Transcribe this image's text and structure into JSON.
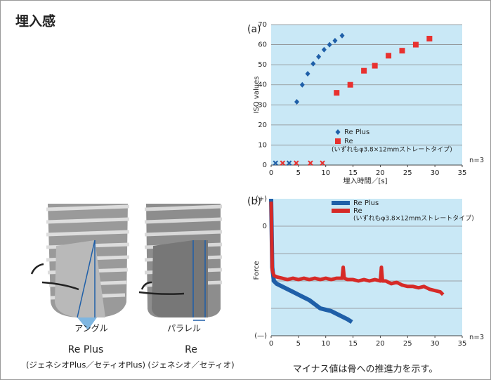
{
  "title": "埋入感",
  "left": {
    "angle_label": "アングル",
    "parallel_label": "パラレル",
    "replus_name": "Re Plus",
    "replus_sub": "(ジェネシオPlus／セティオPlus)",
    "re_name": "Re",
    "re_sub": "(ジェネシオ／セティオ)"
  },
  "caption": "マイナス値は骨への推進力を示す。",
  "chart_data": [
    {
      "type": "scatter",
      "label": "(a)",
      "y_label": "ISQ values",
      "x_label": "埋入時間／[s]",
      "note": "n=3",
      "legend_note": "(いずれもφ3.8×12mmストレートタイプ)",
      "background": "#c9e8f6",
      "grid": true,
      "xlim": [
        0,
        35
      ],
      "xticks": [
        0,
        5,
        10,
        15,
        20,
        25,
        30,
        35
      ],
      "ylim": [
        0,
        70
      ],
      "yticks": [
        0,
        10,
        20,
        30,
        40,
        50,
        60,
        70
      ],
      "series": [
        {
          "name": "Re Plus",
          "color": "#1f5fa8",
          "marker": "diamond",
          "x": [
            4.7,
            5.7,
            6.7,
            7.7,
            8.7,
            9.7,
            10.7,
            11.7,
            13
          ],
          "values": [
            31.5,
            40,
            45.5,
            50.5,
            54,
            57.5,
            60,
            62,
            64.5
          ]
        },
        {
          "name": "Re",
          "color": "#e8312f",
          "marker": "square",
          "x": [
            12,
            14.5,
            17,
            19,
            21.5,
            24,
            26.5,
            29
          ],
          "values": [
            36,
            40,
            47,
            49.5,
            54.5,
            57,
            60,
            63
          ]
        },
        {
          "color": "#1f5fa8",
          "marker": "cross",
          "x": [
            0.8,
            3.3
          ],
          "values": [
            1,
            1
          ]
        },
        {
          "color": "#e8312f",
          "marker": "cross",
          "x": [
            2.1,
            4.6,
            7.2,
            9.4
          ],
          "values": [
            1,
            1,
            1,
            1
          ]
        }
      ]
    },
    {
      "type": "line",
      "label": "(b)",
      "y_label": "Force",
      "note": "n=3",
      "legend_note": "(いずれもφ3.8×12mmストレートタイプ)",
      "background": "#c9e8f6",
      "xlim": [
        0,
        35
      ],
      "xticks": [
        0,
        5,
        10,
        15,
        20,
        25,
        30,
        35
      ],
      "ylim": [
        -4,
        1
      ],
      "yticks": [
        {
          "value": 1,
          "label": "(+)"
        },
        0,
        {
          "value": -4,
          "label": "(—)"
        }
      ],
      "grid_values": [
        0,
        -1,
        -2,
        -3
      ],
      "series": [
        {
          "name": "Re Plus",
          "color": "#1f5fa8",
          "width": 6,
          "x": [
            0,
            0.2,
            0.5,
            1,
            2,
            3,
            4,
            5,
            6,
            7,
            8,
            9,
            10,
            11,
            12,
            13,
            14,
            14.8
          ],
          "values": [
            1.0,
            -1.5,
            -2.0,
            -2.1,
            -2.2,
            -2.3,
            -2.4,
            -2.5,
            -2.6,
            -2.7,
            -2.85,
            -3.0,
            -3.05,
            -3.1,
            -3.2,
            -3.3,
            -3.4,
            -3.5
          ]
        },
        {
          "name": "Re",
          "color": "#d62a27",
          "width": 5,
          "x": [
            0,
            0.2,
            0.5,
            1,
            2,
            3,
            4,
            5,
            6,
            7,
            8,
            9,
            10,
            11,
            12,
            13,
            13.2,
            13.4,
            14,
            15,
            16,
            17,
            18,
            19,
            20,
            20.2,
            20.4,
            21,
            22,
            23,
            24,
            25,
            26,
            27,
            28,
            29,
            30,
            31,
            31.5
          ],
          "values": [
            0.9,
            -1.6,
            -1.8,
            -1.85,
            -1.9,
            -1.95,
            -1.9,
            -1.95,
            -1.9,
            -1.95,
            -1.9,
            -1.95,
            -1.9,
            -1.95,
            -1.9,
            -1.9,
            -1.5,
            -1.9,
            -1.95,
            -1.95,
            -2.0,
            -1.95,
            -2.0,
            -1.95,
            -2.0,
            -1.5,
            -2.0,
            -2.0,
            -2.1,
            -2.05,
            -2.15,
            -2.2,
            -2.2,
            -2.25,
            -2.2,
            -2.3,
            -2.35,
            -2.4,
            -2.5
          ]
        }
      ]
    }
  ]
}
